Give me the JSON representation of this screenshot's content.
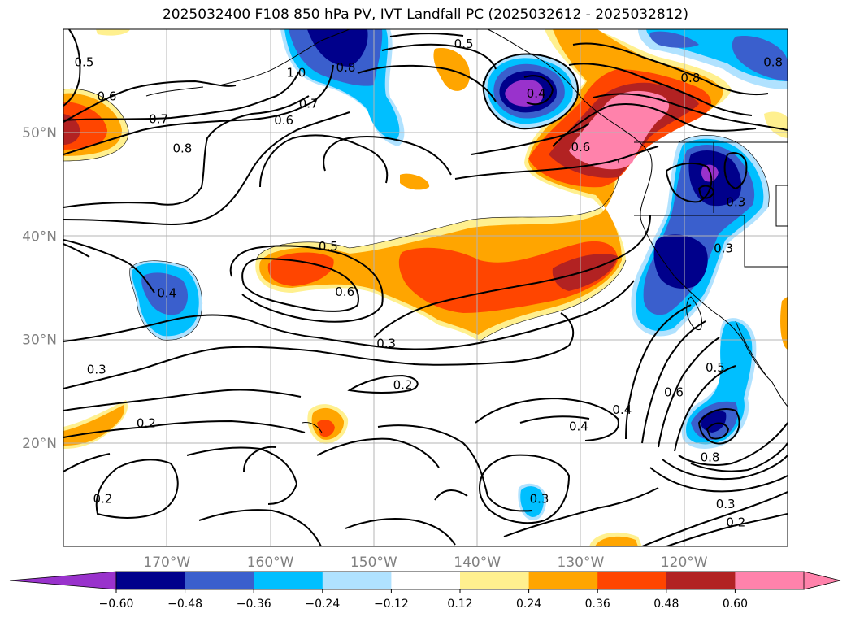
{
  "title": "2025032400 F108 850 hPa PV, IVT Landfall PC (2025032612 - 2025032812)",
  "map": {
    "lon_range": [
      -180,
      -110
    ],
    "lat_range": [
      10,
      60
    ],
    "lat_ticks": [
      {
        "value": 50,
        "label": "50°N"
      },
      {
        "value": 40,
        "label": "40°N"
      },
      {
        "value": 30,
        "label": "30°N"
      },
      {
        "value": 20,
        "label": "20°N"
      }
    ],
    "lon_ticks": [
      {
        "value": -170,
        "label": "170°W"
      },
      {
        "value": -160,
        "label": "160°W"
      },
      {
        "value": -150,
        "label": "150°W"
      },
      {
        "value": -140,
        "label": "140°W"
      },
      {
        "value": -130,
        "label": "130°W"
      },
      {
        "value": -120,
        "label": "120°W"
      }
    ],
    "grid": true
  },
  "contour_labels": [
    {
      "text": "0.5",
      "lon": -178,
      "lat": 56.8
    },
    {
      "text": "0.6",
      "lon": -175.8,
      "lat": 53.5
    },
    {
      "text": "0.7",
      "lon": -170.8,
      "lat": 51.3
    },
    {
      "text": "0.8",
      "lon": -168.5,
      "lat": 48.5
    },
    {
      "text": "1.0",
      "lon": -157.5,
      "lat": 55.8
    },
    {
      "text": "0.8",
      "lon": -152.7,
      "lat": 56.3
    },
    {
      "text": "0.7",
      "lon": -156.3,
      "lat": 52.8
    },
    {
      "text": "0.6",
      "lon": -158.7,
      "lat": 51.2
    },
    {
      "text": "0.5",
      "lon": -141.3,
      "lat": 58.6
    },
    {
      "text": "0.4",
      "lon": -134.3,
      "lat": 53.8
    },
    {
      "text": "0.6",
      "lon": -130.0,
      "lat": 48.6
    },
    {
      "text": "0.8",
      "lon": -119.4,
      "lat": 55.3
    },
    {
      "text": "0.8",
      "lon": -111.4,
      "lat": 56.8
    },
    {
      "text": "0.3",
      "lon": -115.0,
      "lat": 43.3
    },
    {
      "text": "0.3",
      "lon": -116.2,
      "lat": 38.8
    },
    {
      "text": "0.5",
      "lon": -154.4,
      "lat": 39.0
    },
    {
      "text": "0.6",
      "lon": -152.8,
      "lat": 34.6
    },
    {
      "text": "0.4",
      "lon": -170.0,
      "lat": 34.5
    },
    {
      "text": "0.3",
      "lon": -148.8,
      "lat": 29.6
    },
    {
      "text": "0.2",
      "lon": -147.2,
      "lat": 25.6
    },
    {
      "text": "0.3",
      "lon": -176.8,
      "lat": 27.1
    },
    {
      "text": "0.2",
      "lon": -172.0,
      "lat": 21.9
    },
    {
      "text": "0.2",
      "lon": -176.2,
      "lat": 14.6
    },
    {
      "text": "0.3",
      "lon": -134.0,
      "lat": 14.6
    },
    {
      "text": "0.4",
      "lon": -126.0,
      "lat": 23.2
    },
    {
      "text": "0.4",
      "lon": -130.2,
      "lat": 21.6
    },
    {
      "text": "0.6",
      "lon": -121.0,
      "lat": 24.9
    },
    {
      "text": "0.8",
      "lon": -117.5,
      "lat": 18.6
    },
    {
      "text": "0.5",
      "lon": -117.0,
      "lat": 27.3
    },
    {
      "text": "0.3",
      "lon": -116.0,
      "lat": 14.1
    },
    {
      "text": "0.2",
      "lon": -115.0,
      "lat": 12.3
    }
  ],
  "colorbar": {
    "bounds": [
      -0.72,
      -0.6,
      -0.48,
      -0.36,
      -0.24,
      -0.12,
      0.12,
      0.24,
      0.36,
      0.48,
      0.6,
      0.72
    ],
    "colors": [
      "#9932cc",
      "#00008b",
      "#3a5fcd",
      "#00bfff",
      "#b0e2ff",
      "#ffffff",
      "#fff08f",
      "#ffa500",
      "#ff4500",
      "#b22222",
      "#ff82ab"
    ],
    "under_color": "#9932cc",
    "over_color": "#ff82ab",
    "tick_labels": [
      "−0.60",
      "−0.48",
      "−0.36",
      "−0.24",
      "−0.12",
      "0.12",
      "0.24",
      "0.36",
      "0.48",
      "0.60"
    ]
  }
}
